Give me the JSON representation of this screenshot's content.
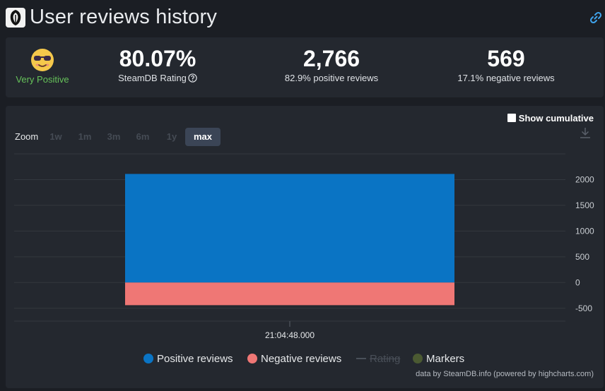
{
  "header": {
    "title": "User reviews history",
    "logo_icon": "game-logo-icon",
    "link_icon": "link-icon"
  },
  "stats": {
    "verdict": "Very Positive",
    "rating_value": "80.07%",
    "rating_label": "SteamDB Rating",
    "positive_count": "2,766",
    "positive_label": "82.9% positive reviews",
    "negative_count": "569",
    "negative_label": "17.1% negative reviews"
  },
  "controls": {
    "cumulative_label": "Show cumulative",
    "cumulative_checked": false,
    "zoom_label": "Zoom",
    "zoom_options": [
      "1w",
      "1m",
      "3m",
      "6m",
      "1y",
      "max"
    ],
    "zoom_selected": "max"
  },
  "chart_data": {
    "type": "bar",
    "x": [
      "21:04:48.000"
    ],
    "series": [
      {
        "name": "Positive reviews",
        "values": [
          2110
        ],
        "color": "#0a74c4"
      },
      {
        "name": "Negative reviews",
        "values": [
          -440
        ],
        "color": "#ef7775"
      }
    ],
    "y_ticks": [
      "2000",
      "1500",
      "1000",
      "500",
      "0",
      "-500"
    ],
    "ylim": [
      -500,
      2000
    ],
    "grid": true,
    "legend_position": "bottom"
  },
  "legend": {
    "items": [
      {
        "label": "Positive reviews",
        "color": "#0a74c4",
        "disabled": false
      },
      {
        "label": "Negative reviews",
        "color": "#ef7775",
        "disabled": false
      },
      {
        "label": "Rating",
        "color": "#4a5059",
        "disabled": true
      },
      {
        "label": "Markers",
        "color": "#4b5a32",
        "disabled": false
      }
    ]
  },
  "credits": "data by SteamDB.info (powered by highcharts.com)"
}
